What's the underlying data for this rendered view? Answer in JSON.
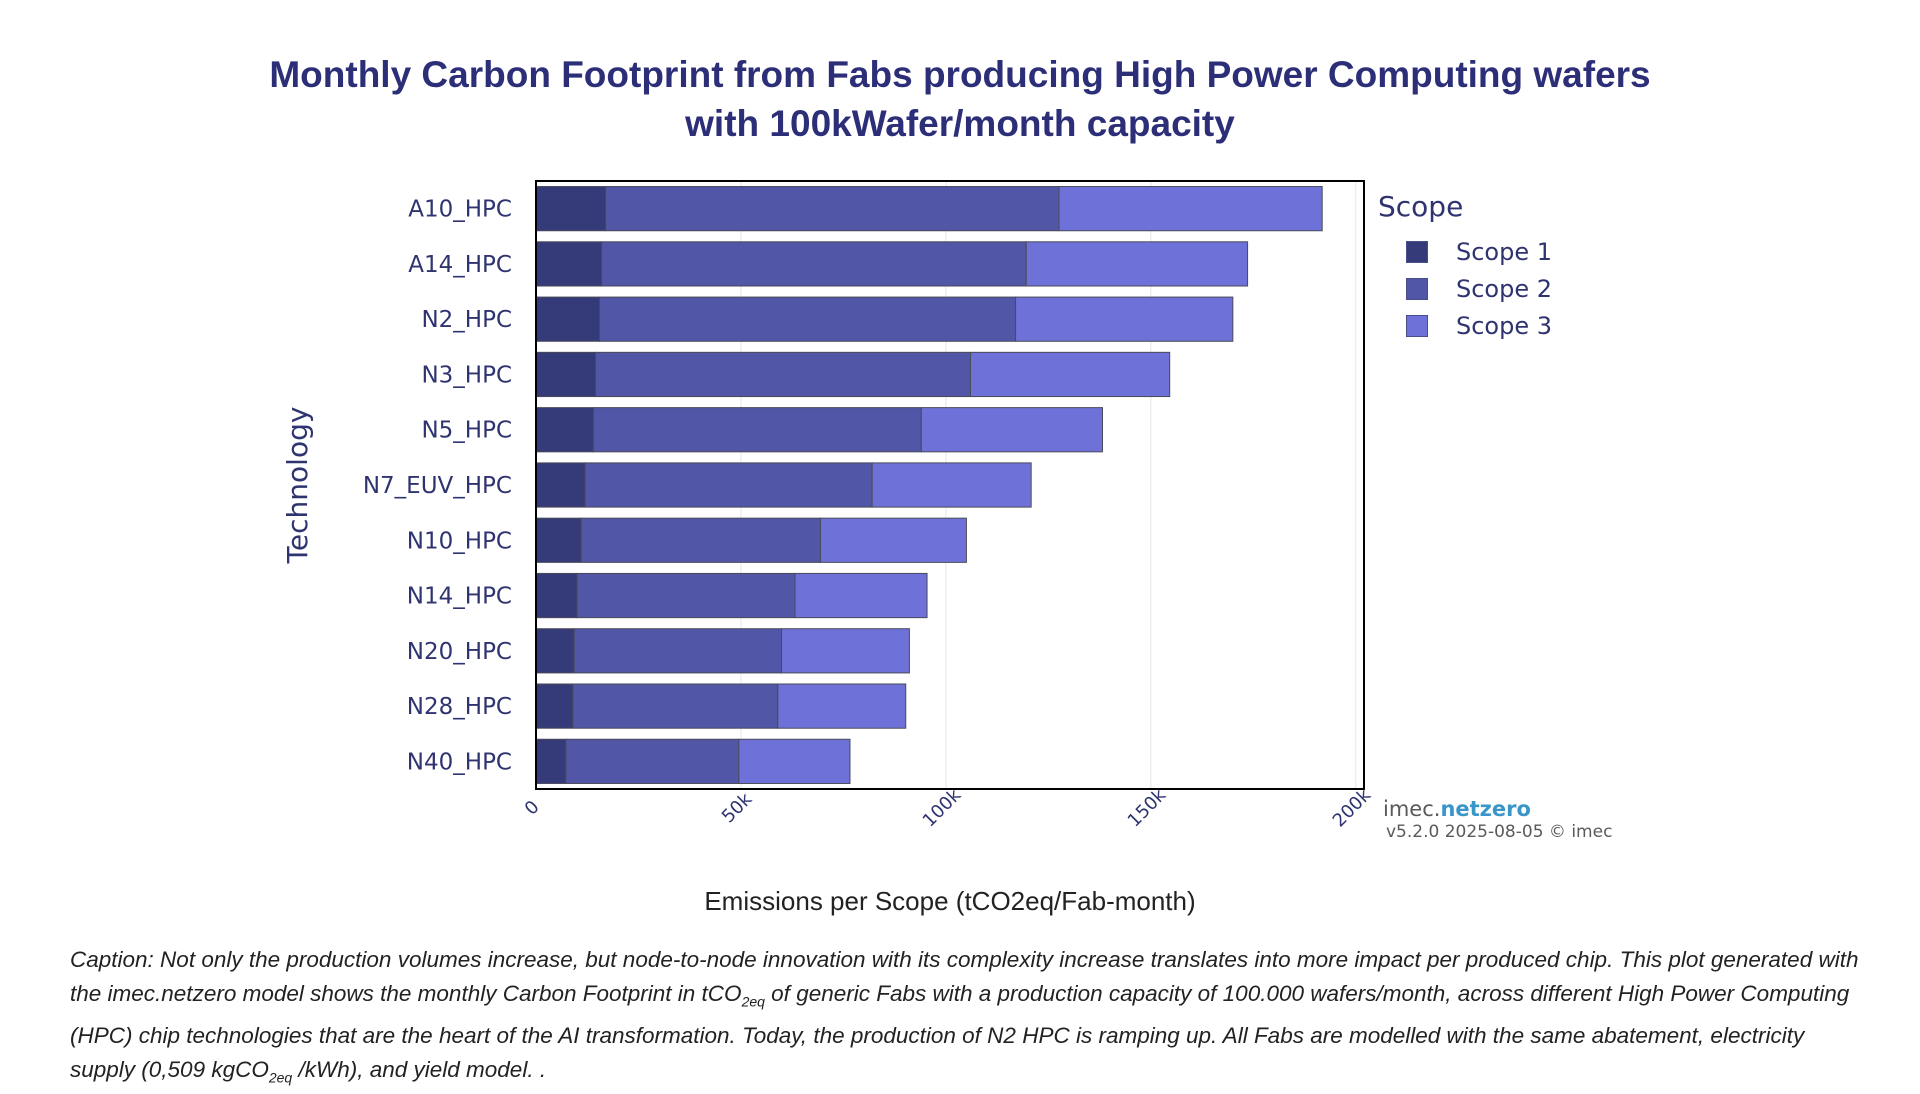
{
  "title_line1": "Monthly Carbon Footprint from Fabs producing High Power Computing wafers",
  "title_line2": "with 100kWafer/month capacity",
  "chart_data": {
    "type": "bar",
    "orientation": "horizontal",
    "stacked": true,
    "categories": [
      "A10_HPC",
      "A14_HPC",
      "N2_HPC",
      "N3_HPC",
      "N5_HPC",
      "N7_EUV_HPC",
      "N10_HPC",
      "N14_HPC",
      "N20_HPC",
      "N28_HPC",
      "N40_HPC"
    ],
    "series": [
      {
        "name": "Scope 1",
        "color": "#353a78",
        "values": [
          17000,
          16000,
          15500,
          14500,
          14000,
          12000,
          11000,
          10000,
          9300,
          9000,
          7300
        ]
      },
      {
        "name": "Scope 2",
        "color": "#5156a6",
        "values": [
          110600,
          103600,
          101500,
          91500,
          80000,
          70000,
          58400,
          53200,
          50600,
          50000,
          42200
        ]
      },
      {
        "name": "Scope 3",
        "color": "#6e72d8",
        "values": [
          64200,
          54000,
          53000,
          48600,
          44200,
          38800,
          35600,
          32200,
          31200,
          31200,
          27100
        ]
      }
    ],
    "xlim": [
      0,
      202000
    ],
    "xticks": [
      0,
      50000,
      100000,
      150000,
      200000
    ],
    "xtick_labels": [
      "0",
      "50k",
      "100k",
      "150k",
      "200k"
    ],
    "xlabel": "Emissions per Scope (tCO2eq/Fab-month)",
    "ylabel": "Technology",
    "legend_title": "Scope",
    "legend_position": "right"
  },
  "branding": {
    "prefix": "imec.",
    "name": "netzero",
    "version": "v5.2.0 2025-08-05 © imec"
  },
  "caption": {
    "p1": "Caption: Not only the production volumes increase, but node-to-node innovation with its complexity  increase translates into more impact per produced chip. This plot generated with the imec.netzero model shows the monthly Carbon Footprint in tCO",
    "sub1": "2eq",
    "p2": " of generic Fabs with a production capacity of 100.000 wafers/month, across different High Power Computing (HPC) chip technologies that are the heart of the AI transformation. Today, the production of N2 HPC is ramping up. All Fabs are modelled with the same abatement, electricity supply (0,509 kgCO",
    "sub2": "2eq",
    "p3": " /kWh), and yield model. ."
  }
}
